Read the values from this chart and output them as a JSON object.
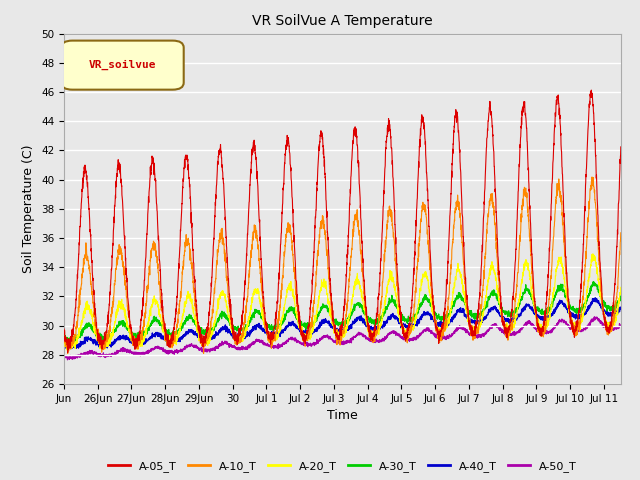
{
  "title": "VR SoilVue A Temperature",
  "ylabel": "Soil Temperature (C)",
  "xlabel": "Time",
  "ylim": [
    26,
    50
  ],
  "yticks": [
    26,
    28,
    30,
    32,
    34,
    36,
    38,
    40,
    42,
    44,
    46,
    48,
    50
  ],
  "fig_bg": "#e8e8e8",
  "plot_bg": "#e8e8e8",
  "series_colors": {
    "A-05_T": "#dd0000",
    "A-10_T": "#ff8800",
    "A-20_T": "#ffff00",
    "A-30_T": "#00cc00",
    "A-40_T": "#0000cc",
    "A-50_T": "#aa00aa"
  },
  "legend_label": "VR_soilvue",
  "xtick_labels": [
    "Jun",
    "26Jun",
    "27Jun",
    "28Jun",
    "29Jun",
    "30",
    "Jul 1",
    "Jul 2",
    "Jul 3",
    "Jul 4",
    "Jul 5",
    "Jul 6",
    "Jul 7",
    "Jul 8",
    "Jul 9",
    "Jul 10",
    "Jul 11"
  ],
  "num_days": 16.5
}
